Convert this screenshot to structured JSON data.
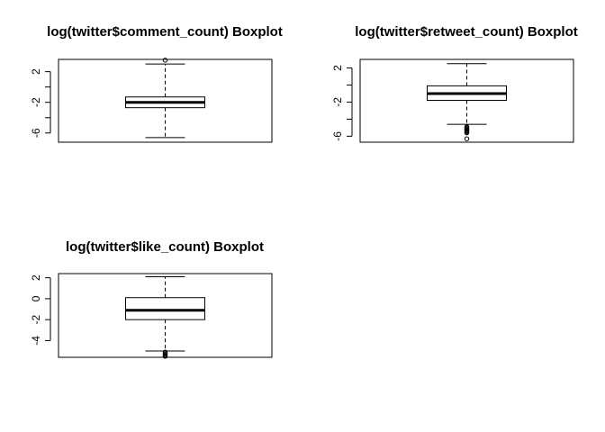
{
  "chart_data": [
    {
      "type": "boxplot",
      "title": "log(twitter$comment_count) Boxplot",
      "ylim": [
        -7.2,
        3.6
      ],
      "yticks": [
        2,
        0,
        -2,
        -4,
        -6
      ],
      "yticklabels": [
        "2",
        "",
        "-2",
        "",
        "-6"
      ],
      "whisker_low": -6.6,
      "q1": -2.7,
      "median": -2.0,
      "q3": -1.3,
      "whisker_high": 3.0,
      "outliers": [
        3.5
      ]
    },
    {
      "type": "boxplot",
      "title": "log(twitter$retweet_count) Boxplot",
      "ylim": [
        -6.7,
        3.0
      ],
      "yticks": [
        2,
        0,
        -2,
        -4,
        -6
      ],
      "yticklabels": [
        "2",
        "",
        "-2",
        "",
        "-6"
      ],
      "whisker_low": -4.6,
      "q1": -1.8,
      "median": -1.0,
      "q3": -0.1,
      "whisker_high": 2.5,
      "outliers": [
        -4.9,
        -5.0,
        -5.1,
        -5.2,
        -5.3,
        -5.4,
        -5.5,
        -5.6,
        -6.3
      ]
    },
    {
      "type": "boxplot",
      "title": "log(twitter$like_count) Boxplot",
      "ylim": [
        -5.6,
        2.4
      ],
      "yticks": [
        2,
        0,
        -2,
        -4
      ],
      "yticklabels": [
        "2",
        "0",
        "-2",
        "-4"
      ],
      "whisker_low": -5.0,
      "q1": -2.0,
      "median": -1.1,
      "q3": 0.1,
      "whisker_high": 2.1,
      "outliers": [
        -5.1,
        -5.2,
        -5.3,
        -5.4,
        -5.5
      ]
    }
  ]
}
